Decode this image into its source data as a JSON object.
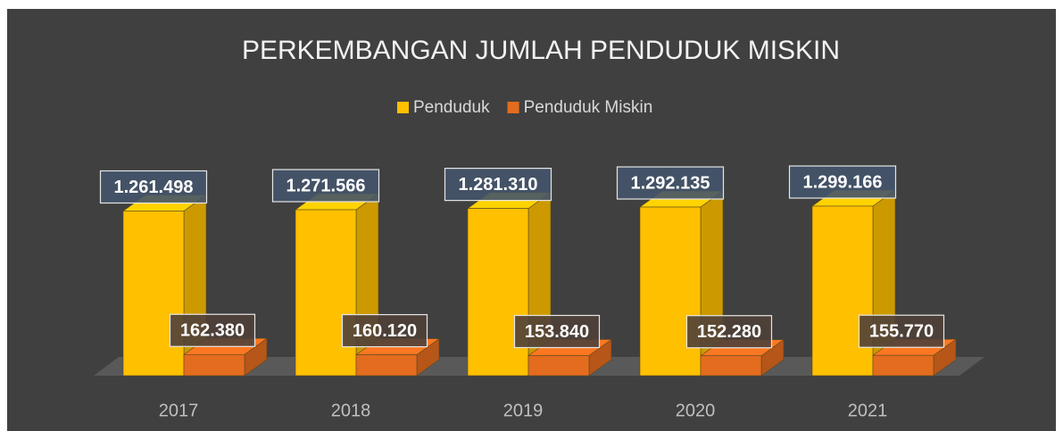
{
  "chart_data": {
    "type": "bar3d",
    "title": "PERKEMBANGAN JUMLAH PENDUDUK MISKIN",
    "categories": [
      "2017",
      "2018",
      "2019",
      "2020",
      "2021"
    ],
    "series": [
      {
        "name": "Penduduk",
        "color": "#ffc000",
        "values": [
          1261498,
          1271566,
          1281310,
          1292135,
          1299166
        ],
        "value_labels": [
          "1.261.498",
          "1.271.566",
          "1.281.310",
          "1.292.135",
          "1.299.166"
        ]
      },
      {
        "name": "Penduduk Miskin",
        "color": "#e46c1e",
        "values": [
          162380,
          160120,
          153840,
          152280,
          155770
        ],
        "value_labels": [
          "162.380",
          "160.120",
          "153.840",
          "152.280",
          "155.770"
        ]
      }
    ],
    "legend": "top"
  }
}
